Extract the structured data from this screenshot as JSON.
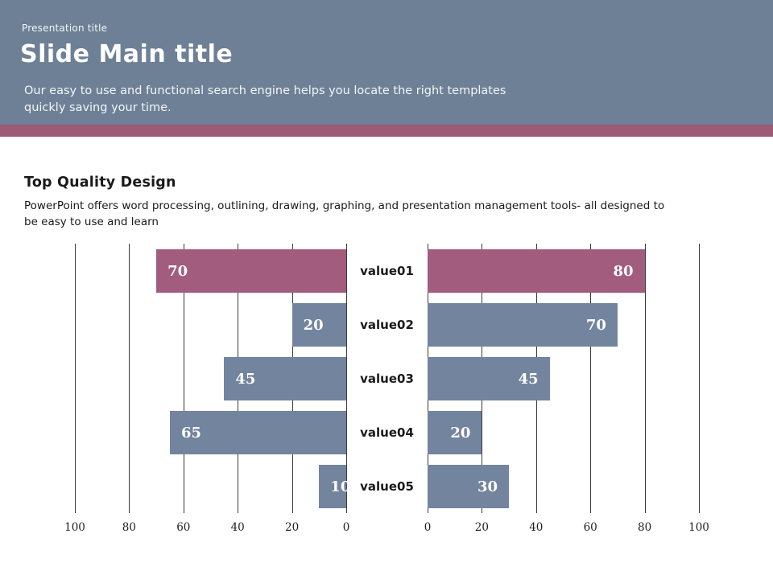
{
  "header": {
    "kicker": "Presentation title",
    "title": "Slide Main title",
    "subtitle": "Our easy to use and functional search engine helps you locate the right templates\nquickly saving your time."
  },
  "content": {
    "heading": "Top Quality Design",
    "description": "PowerPoint offers word processing, outlining, drawing, graphing, and presentation management tools- all designed to\nbe easy to use and learn"
  },
  "colors": {
    "header_bg": "#6D8095",
    "accent_stripe": "#9C5A75",
    "bar_default": "#72849E",
    "bar_highlight": "#A25C7E",
    "bar_value_label": "#FFFFFF",
    "gridline": "#3A3A3A",
    "text_dark": "#1A1A1A",
    "text_on_dark": "#FFFFFF"
  },
  "chart_data": {
    "type": "bar",
    "subtype": "tornado-horizontal",
    "title": "",
    "xlabel": "",
    "ylabel": "",
    "grid": true,
    "xlim": [
      0,
      100
    ],
    "categories": [
      "value01",
      "value02",
      "value03",
      "value04",
      "value05"
    ],
    "series": [
      {
        "name": "left",
        "values": [
          70,
          20,
          45,
          65,
          10
        ]
      },
      {
        "name": "right",
        "values": [
          80,
          70,
          45,
          20,
          30
        ]
      }
    ],
    "axis_ticks_left": [
      100,
      80,
      60,
      40,
      20,
      0
    ],
    "axis_ticks_right": [
      0,
      20,
      40,
      60,
      80,
      100
    ],
    "highlight_category": "value01"
  }
}
